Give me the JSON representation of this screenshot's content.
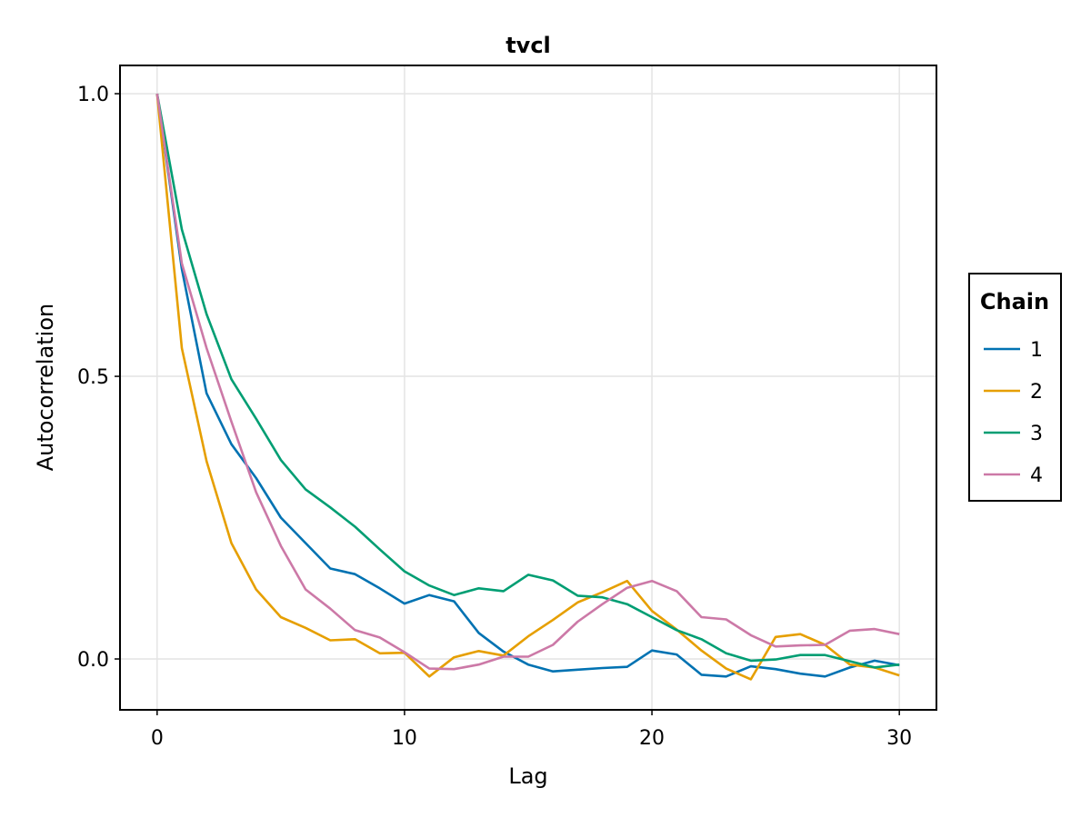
{
  "chart_data": {
    "type": "line",
    "title": "tvcl",
    "xlabel": "Lag",
    "ylabel": "Autocorrelation",
    "xlim": [
      -1.5,
      31.5
    ],
    "ylim": [
      -0.09,
      1.05
    ],
    "xticks": [
      0,
      10,
      20,
      30
    ],
    "xtick_labels": [
      "0",
      "10",
      "20",
      "30"
    ],
    "yticks": [
      0.0,
      0.5,
      1.0
    ],
    "ytick_labels": [
      "0.0",
      "0.5",
      "1.0"
    ],
    "grid": true,
    "legend": {
      "title": "Chain",
      "placement": "right"
    },
    "x": [
      0,
      1,
      2,
      3,
      4,
      5,
      6,
      7,
      8,
      9,
      10,
      11,
      12,
      13,
      14,
      15,
      16,
      17,
      18,
      19,
      20,
      21,
      22,
      23,
      24,
      25,
      26,
      27,
      28,
      29,
      30
    ],
    "series": [
      {
        "name": "1",
        "color": "#0072b2",
        "values": [
          1.0,
          0.69,
          0.47,
          0.38,
          0.32,
          0.25,
          0.205,
          0.16,
          0.15,
          0.125,
          0.098,
          0.113,
          0.102,
          0.046,
          0.013,
          -0.01,
          -0.022,
          -0.019,
          -0.016,
          -0.014,
          0.015,
          0.008,
          -0.028,
          -0.031,
          -0.013,
          -0.018,
          -0.026,
          -0.031,
          -0.015,
          -0.003,
          -0.011
        ]
      },
      {
        "name": "2",
        "color": "#e69f00",
        "values": [
          1.0,
          0.55,
          0.35,
          0.205,
          0.123,
          0.074,
          0.055,
          0.033,
          0.035,
          0.01,
          0.011,
          -0.031,
          0.003,
          0.014,
          0.006,
          0.04,
          0.069,
          0.1,
          0.118,
          0.138,
          0.085,
          0.052,
          0.015,
          -0.017,
          -0.036,
          0.039,
          0.044,
          0.025,
          -0.01,
          -0.015,
          -0.029
        ]
      },
      {
        "name": "3",
        "color": "#009e73",
        "values": [
          1.0,
          0.76,
          0.61,
          0.495,
          0.425,
          0.352,
          0.3,
          0.268,
          0.234,
          0.194,
          0.155,
          0.13,
          0.113,
          0.125,
          0.12,
          0.149,
          0.139,
          0.112,
          0.109,
          0.097,
          0.074,
          0.051,
          0.035,
          0.01,
          -0.003,
          -0.001,
          0.007,
          0.007,
          -0.004,
          -0.015,
          -0.01
        ]
      },
      {
        "name": "4",
        "color": "#cc79a7",
        "values": [
          1.0,
          0.7,
          0.55,
          0.42,
          0.295,
          0.2,
          0.123,
          0.089,
          0.051,
          0.038,
          0.012,
          -0.017,
          -0.018,
          -0.01,
          0.004,
          0.004,
          0.025,
          0.066,
          0.097,
          0.126,
          0.138,
          0.12,
          0.074,
          0.07,
          0.042,
          0.022,
          0.024,
          0.025,
          0.05,
          0.053,
          0.044
        ]
      }
    ]
  }
}
